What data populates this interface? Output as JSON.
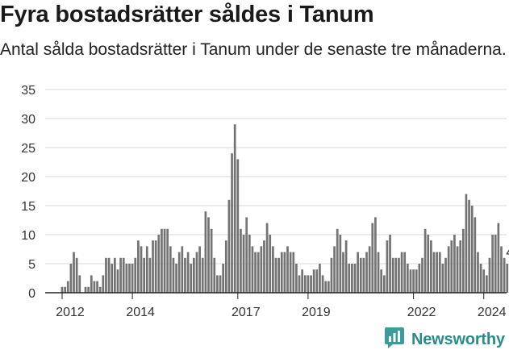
{
  "title": "Fyra bostadsrätter såldes i Tanum",
  "subtitle": "Antal sålda bostadsrätter i Tanum under de senaste tre månaderna.",
  "brand": {
    "name": "Newsworthy",
    "icon": "newsworthy-logo-icon",
    "color": "#3b9d99"
  },
  "colors": {
    "bar": "#737373",
    "highlight": "#2e9c94",
    "grid": "#d9d9d9",
    "axis": "#222222"
  },
  "chart_data": {
    "type": "bar",
    "title": "Fyra bostadsrätter såldes i Tanum",
    "xlabel": "",
    "ylabel": "",
    "ylim": [
      0,
      35
    ],
    "yticks": [
      0,
      5,
      10,
      15,
      20,
      25,
      30,
      35
    ],
    "xtick_labels": [
      {
        "label": "2012",
        "month": "2012-01"
      },
      {
        "label": "2014",
        "month": "2014-01"
      },
      {
        "label": "2017",
        "month": "2017-01"
      },
      {
        "label": "2019",
        "month": "2019-01"
      },
      {
        "label": "2022",
        "month": "2022-01"
      },
      {
        "label": "2024",
        "month": "2024-01"
      }
    ],
    "grid": true,
    "series": [
      {
        "name": "",
        "start_month": "2012-01",
        "values": [
          1,
          1,
          2,
          5,
          7,
          6,
          3,
          0,
          1,
          1,
          3,
          2,
          2,
          1,
          3,
          6,
          6,
          5,
          6,
          4,
          6,
          6,
          5,
          5,
          5,
          6,
          9,
          8,
          6,
          8,
          6,
          9,
          9,
          10,
          11,
          11,
          11,
          8,
          6,
          5,
          7,
          8,
          6,
          7,
          5,
          6,
          7,
          8,
          6,
          14,
          13,
          11,
          6,
          3,
          3,
          5,
          9,
          16,
          24,
          29,
          23,
          11,
          10,
          13,
          10,
          8,
          7,
          7,
          8,
          9,
          12,
          10,
          8,
          6,
          6,
          7,
          7,
          8,
          7,
          7,
          5,
          3,
          4,
          3,
          3,
          3,
          4,
          4,
          5,
          3,
          2,
          2,
          6,
          8,
          11,
          10,
          7,
          9,
          5,
          5,
          5,
          7,
          6,
          6,
          7,
          8,
          12,
          13,
          7,
          4,
          3,
          9,
          10,
          6,
          6,
          6,
          7,
          7,
          5,
          4,
          4,
          4,
          5,
          6,
          11,
          10,
          9,
          7,
          7,
          7,
          5,
          6,
          8,
          9,
          10,
          8,
          9,
          11,
          17,
          16,
          15,
          13,
          7,
          5,
          4,
          3,
          6,
          10,
          10,
          12,
          8,
          6,
          5,
          4
        ],
        "highlight_last": true
      }
    ],
    "annotations": [
      {
        "text": "4",
        "target": "last-bar"
      }
    ]
  }
}
